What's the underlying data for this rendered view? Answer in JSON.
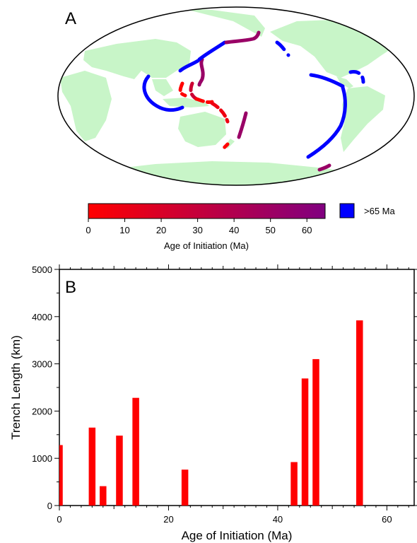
{
  "map_panel": {
    "letter": "A",
    "colors": {
      "land": "#c8f5c8",
      "ocean": "#ffffff",
      "old_trench": "#0000ff"
    },
    "colorbar": {
      "title": "Age of Initiation (Ma)",
      "ticks": [
        0,
        10,
        20,
        30,
        40,
        50,
        60
      ],
      "range": [
        0,
        65
      ],
      "color_start": "#ff0000",
      "color_end": "#800080",
      "legend_label": ">65 Ma"
    }
  },
  "chart_data": {
    "type": "bar",
    "panel_letter": "B",
    "xlabel": "Age of Initiation (Ma)",
    "ylabel": "Trench Length (km)",
    "xlim": [
      0,
      65
    ],
    "ylim": [
      0,
      5000
    ],
    "x_ticks": [
      0,
      20,
      40,
      60
    ],
    "y_ticks": [
      0,
      1000,
      2000,
      3000,
      4000,
      5000
    ],
    "bar_color": "#ff0000",
    "x": [
      0,
      6,
      8,
      11,
      14,
      23,
      43,
      45,
      47,
      55
    ],
    "values": [
      1280,
      1650,
      410,
      1480,
      2280,
      760,
      920,
      2690,
      3100,
      3920
    ]
  }
}
